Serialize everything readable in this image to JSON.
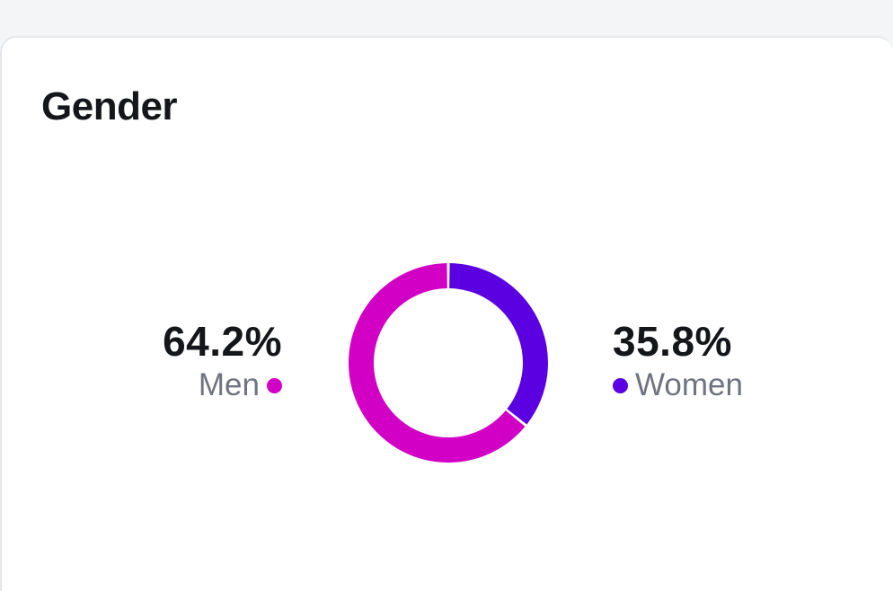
{
  "card": {
    "title": "Gender"
  },
  "chart_data": {
    "type": "pie",
    "style": "donut",
    "categories": [
      "Men",
      "Women"
    ],
    "values": [
      64.2,
      35.8
    ],
    "labels": [
      "64.2%",
      "35.8%"
    ],
    "colors": [
      "#d100c4",
      "#5b00e0"
    ],
    "title": "Gender",
    "legend": "beside-chart"
  }
}
